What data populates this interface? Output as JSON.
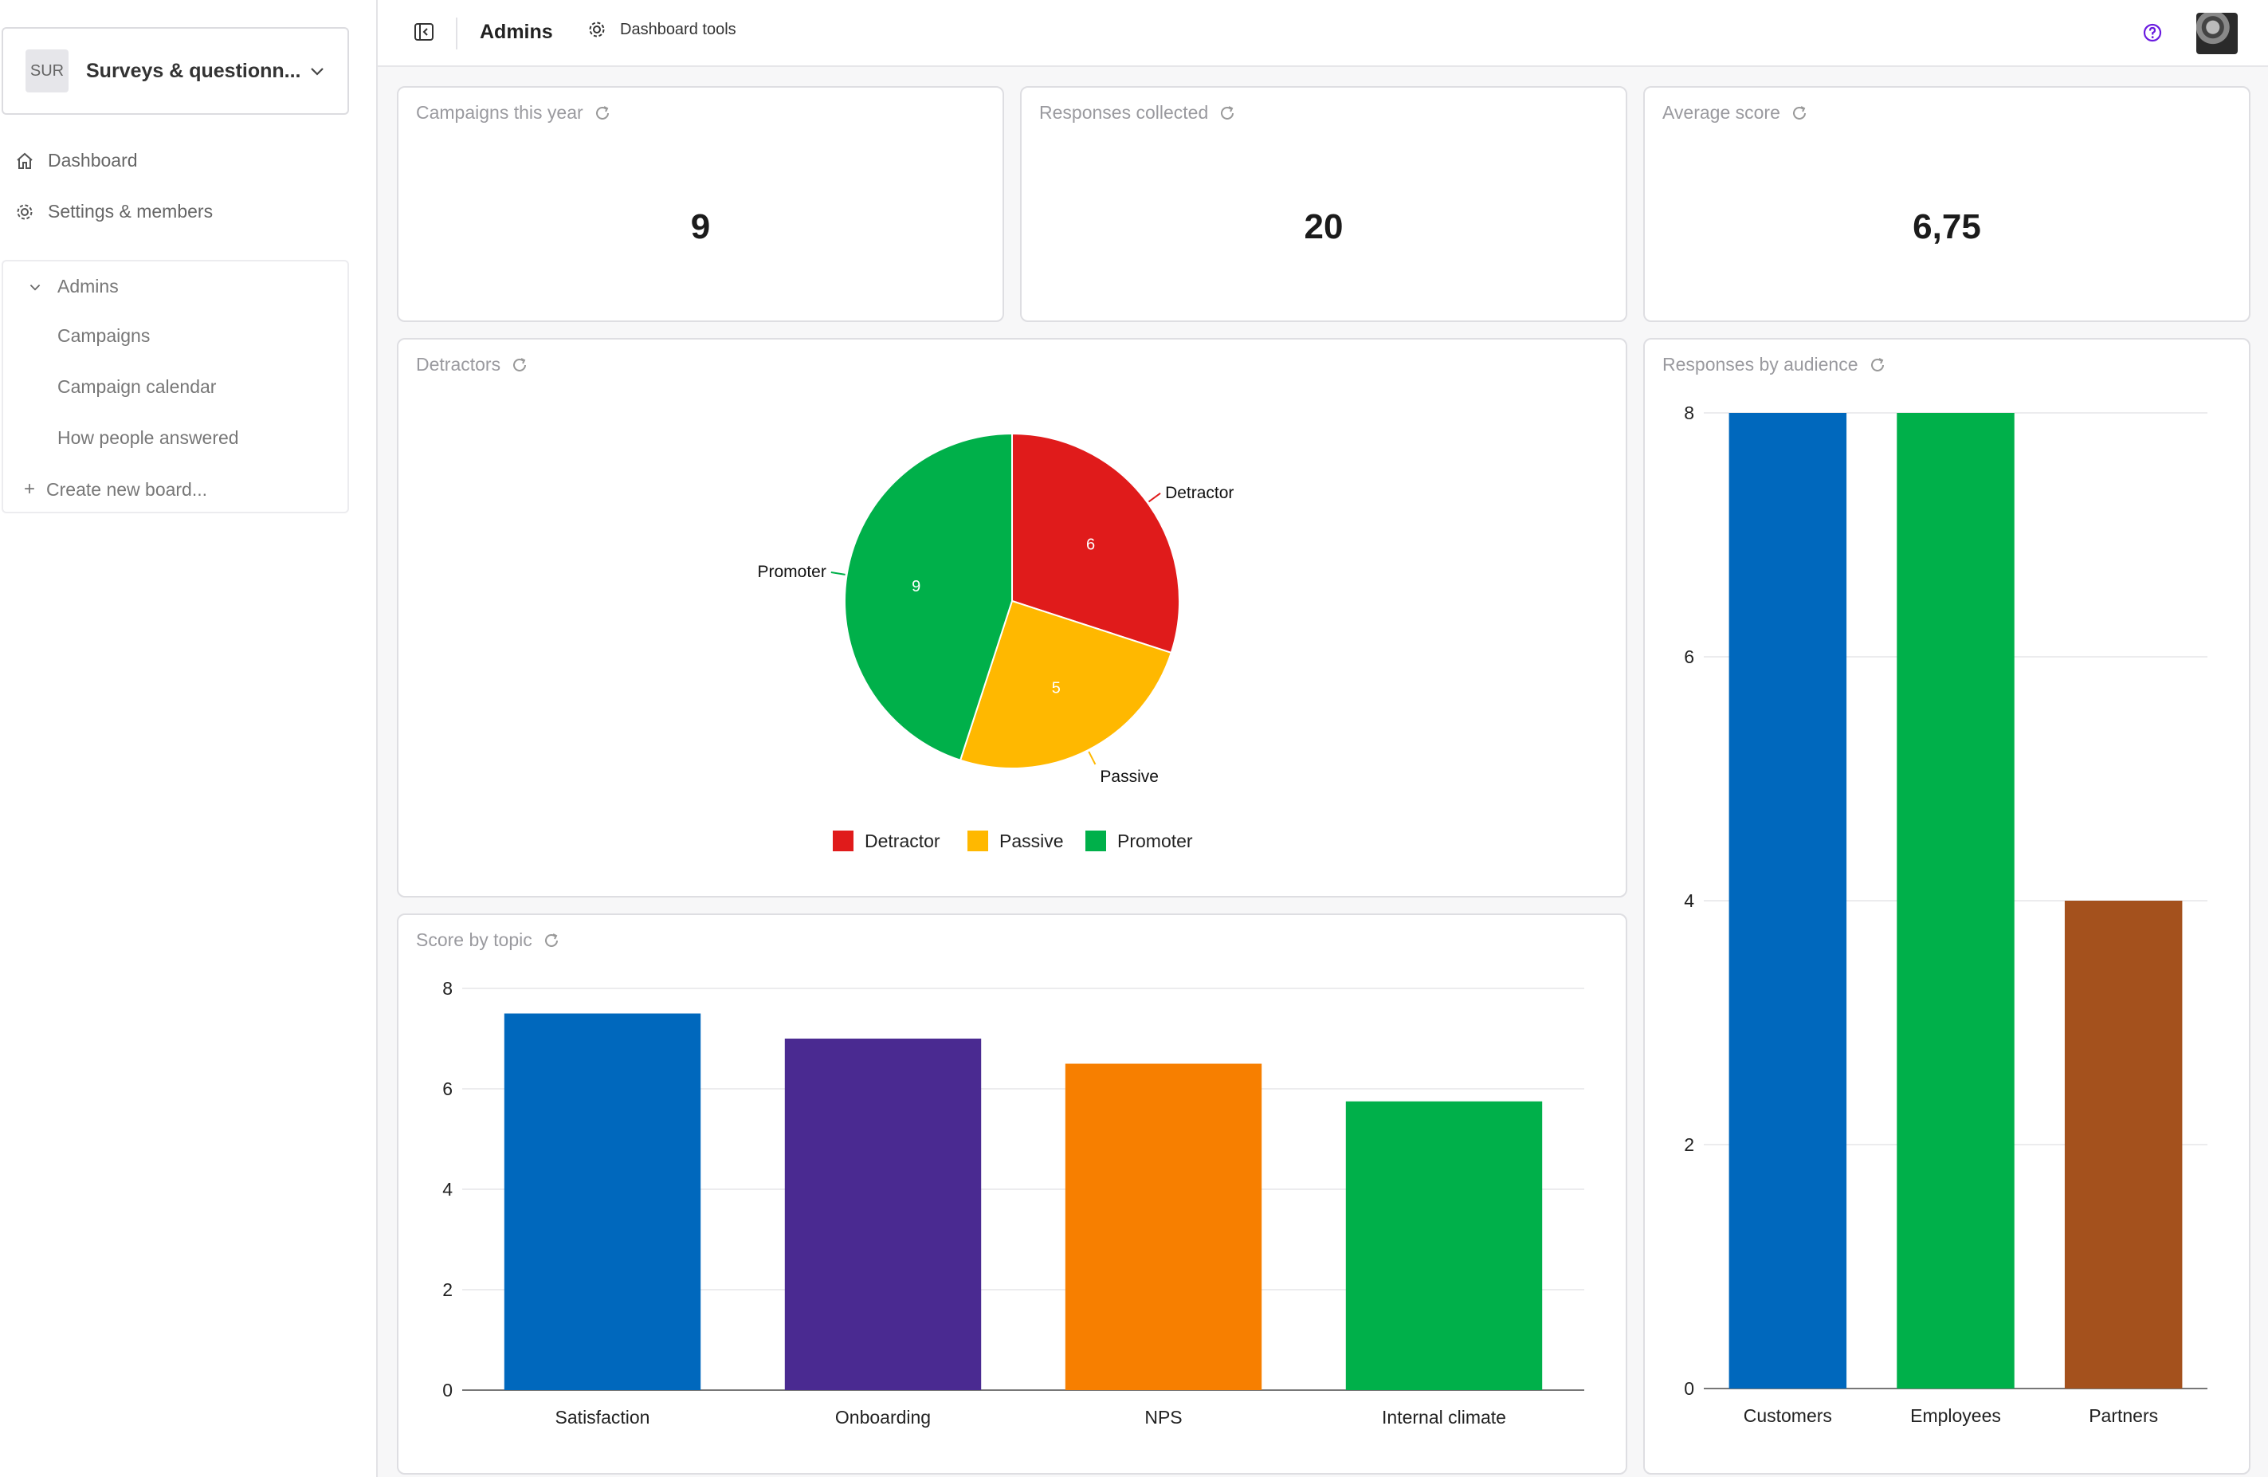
{
  "sidebar": {
    "workspace_badge": "SUR",
    "workspace_name": "Surveys & questionn...",
    "nav": [
      {
        "label": "Dashboard",
        "icon": "home-icon"
      },
      {
        "label": "Settings & members",
        "icon": "gear-icon"
      }
    ],
    "group_label": "Admins",
    "boards": [
      "Campaigns",
      "Campaign calendar",
      "How people answered"
    ],
    "create_label": "Create new board..."
  },
  "topbar": {
    "title": "Admins",
    "tools_label": "Dashboard tools"
  },
  "kpis": [
    {
      "title": "Campaigns this year",
      "value": "9"
    },
    {
      "title": "Responses collected",
      "value": "20"
    },
    {
      "title": "Average score",
      "value": "6,75"
    }
  ],
  "pie_card": {
    "title": "Detractors"
  },
  "topic_card": {
    "title": "Score by topic"
  },
  "audience_card": {
    "title": "Responses by audience"
  },
  "colors": {
    "detractor": "#e01b1b",
    "passive": "#ffb800",
    "promoter": "#00b04a",
    "blue": "#0068bd",
    "purple": "#4a2a91",
    "orange": "#f77f00",
    "brown": "#a4511d",
    "accent": "#6a1be0"
  },
  "chart_data": [
    {
      "type": "pie",
      "title": "Detractors",
      "categories": [
        "Detractor",
        "Passive",
        "Promoter"
      ],
      "values": [
        6,
        5,
        9
      ],
      "colors": [
        "#e01b1b",
        "#ffb800",
        "#00b04a"
      ],
      "legend": "bottom"
    },
    {
      "type": "bar",
      "title": "Score by topic",
      "categories": [
        "Satisfaction",
        "Onboarding",
        "NPS",
        "Internal climate"
      ],
      "values": [
        7.5,
        7.0,
        6.5,
        5.75
      ],
      "colors": [
        "#0068bd",
        "#4a2a91",
        "#f77f00",
        "#00b04a"
      ],
      "ylim": [
        0,
        8
      ],
      "yticks": [
        0,
        2,
        4,
        6,
        8
      ],
      "grid": true
    },
    {
      "type": "bar",
      "title": "Responses by audience",
      "categories": [
        "Customers",
        "Employees",
        "Partners"
      ],
      "values": [
        8,
        8,
        4
      ],
      "colors": [
        "#0068bd",
        "#00b04a",
        "#a4511d"
      ],
      "ylim": [
        0,
        8
      ],
      "yticks": [
        0,
        2,
        4,
        6,
        8
      ],
      "grid": true
    }
  ]
}
